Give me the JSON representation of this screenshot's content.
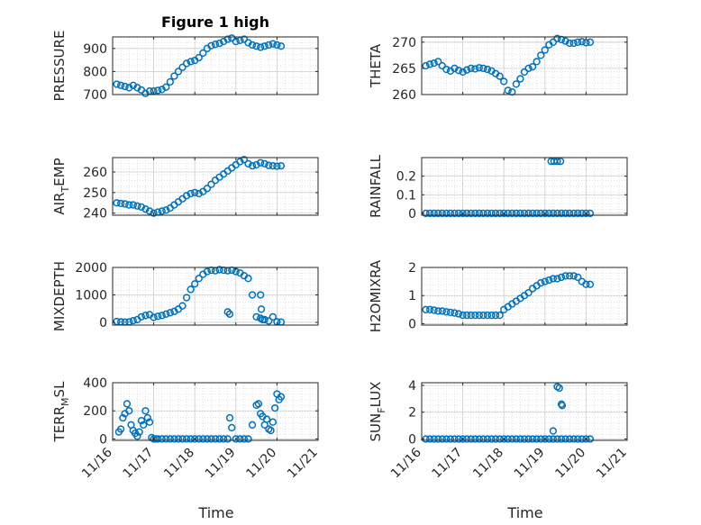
{
  "figure": {
    "title": "Figure 1 high"
  },
  "chart_data": [
    {
      "type": "scatter",
      "panel": "left-1",
      "ylabel": "PRESSURE",
      "ylabel_main": "PRESSURE",
      "ylabel_sub": "",
      "ylabel_tail": "",
      "xlim": [
        0,
        5
      ],
      "ylim": [
        700,
        950
      ],
      "yticks": [
        700,
        800,
        900
      ],
      "yticklabels": [
        "700",
        "800",
        "900"
      ],
      "grid": true,
      "minor_grid": true,
      "x": [
        0.1,
        0.2,
        0.3,
        0.4,
        0.5,
        0.6,
        0.7,
        0.8,
        0.9,
        1.0,
        1.1,
        1.2,
        1.3,
        1.4,
        1.5,
        1.6,
        1.7,
        1.8,
        1.9,
        2.0,
        2.1,
        2.2,
        2.3,
        2.4,
        2.5,
        2.6,
        2.7,
        2.8,
        2.9,
        3.0,
        3.1,
        3.2,
        3.3,
        3.4,
        3.5,
        3.6,
        3.7,
        3.8,
        3.9,
        4.0,
        4.1
      ],
      "y": [
        745,
        740,
        735,
        730,
        740,
        730,
        720,
        705,
        715,
        715,
        718,
        722,
        732,
        755,
        780,
        800,
        818,
        835,
        843,
        848,
        860,
        880,
        900,
        912,
        918,
        922,
        930,
        940,
        945,
        930,
        935,
        940,
        925,
        915,
        910,
        905,
        910,
        915,
        920,
        915,
        910
      ]
    },
    {
      "type": "scatter",
      "panel": "right-1",
      "ylabel": "THETA",
      "ylabel_main": "THETA",
      "ylabel_sub": "",
      "ylabel_tail": "",
      "xlim": [
        0,
        5
      ],
      "ylim": [
        260,
        271
      ],
      "yticks": [
        260,
        265,
        270
      ],
      "yticklabels": [
        "260",
        "265",
        "270"
      ],
      "grid": true,
      "minor_grid": true,
      "x": [
        0.1,
        0.2,
        0.3,
        0.4,
        0.5,
        0.6,
        0.7,
        0.8,
        0.9,
        1.0,
        1.1,
        1.2,
        1.3,
        1.4,
        1.5,
        1.6,
        1.7,
        1.8,
        1.9,
        2.0,
        2.1,
        2.2,
        2.3,
        2.4,
        2.5,
        2.6,
        2.7,
        2.8,
        2.9,
        3.0,
        3.1,
        3.2,
        3.3,
        3.4,
        3.5,
        3.6,
        3.7,
        3.8,
        3.9,
        4.0,
        4.1
      ],
      "y": [
        265.5,
        265.8,
        266,
        266.3,
        265.5,
        264.8,
        264.5,
        265,
        264.6,
        264.3,
        264.7,
        265,
        264.9,
        265.1,
        265,
        264.8,
        264.5,
        264,
        263.5,
        262.5,
        260.8,
        260.5,
        262,
        263,
        264.3,
        265,
        265.3,
        266.3,
        267.5,
        268.5,
        269.5,
        270,
        270.7,
        270.5,
        270.2,
        269.8,
        269.8,
        270,
        270.1,
        269.9,
        270
      ]
    },
    {
      "type": "scatter",
      "panel": "left-2",
      "ylabel": "AIR_TEMP",
      "ylabel_main": "AIR",
      "ylabel_sub": "T",
      "ylabel_tail": "EMP",
      "xlim": [
        0,
        5
      ],
      "ylim": [
        239,
        267
      ],
      "yticks": [
        240,
        250,
        260
      ],
      "yticklabels": [
        "240",
        "250",
        "260"
      ],
      "grid": true,
      "minor_grid": true,
      "x": [
        0.1,
        0.2,
        0.3,
        0.4,
        0.5,
        0.6,
        0.7,
        0.8,
        0.9,
        1.0,
        1.1,
        1.2,
        1.3,
        1.4,
        1.5,
        1.6,
        1.7,
        1.8,
        1.9,
        2.0,
        2.1,
        2.2,
        2.3,
        2.4,
        2.5,
        2.6,
        2.7,
        2.8,
        2.9,
        3.0,
        3.1,
        3.2,
        3.3,
        3.4,
        3.5,
        3.6,
        3.7,
        3.8,
        3.9,
        4.0,
        4.1
      ],
      "y": [
        245,
        244.7,
        244.5,
        244,
        244,
        243.5,
        243,
        242,
        241,
        240,
        240.5,
        241,
        241.5,
        242.5,
        244,
        245.5,
        247,
        248.5,
        249.5,
        250,
        249.5,
        250.5,
        252,
        254,
        256,
        257.5,
        259,
        260.5,
        262,
        263.5,
        265,
        266,
        264,
        263,
        263.5,
        264.5,
        264,
        263.2,
        263,
        262.8,
        263
      ]
    },
    {
      "type": "scatter",
      "panel": "right-2",
      "ylabel": "RAINFALL",
      "ylabel_main": "RAINFALL",
      "ylabel_sub": "",
      "ylabel_tail": "",
      "xlim": [
        0,
        5
      ],
      "ylim": [
        -0.01,
        0.3
      ],
      "yticks": [
        0,
        0.1,
        0.2
      ],
      "yticklabels": [
        "0",
        "0.1",
        "0.2"
      ],
      "grid": true,
      "minor_grid": true,
      "x": [
        0.1,
        0.2,
        0.3,
        0.4,
        0.5,
        0.6,
        0.7,
        0.8,
        0.9,
        1.0,
        1.1,
        1.2,
        1.3,
        1.4,
        1.5,
        1.6,
        1.7,
        1.8,
        1.9,
        2.0,
        2.1,
        2.2,
        2.3,
        2.4,
        2.5,
        2.6,
        2.7,
        2.8,
        2.9,
        3.0,
        3.1,
        3.2,
        3.3,
        3.4,
        3.5,
        3.6,
        3.7,
        3.8,
        3.9,
        4.0,
        4.1,
        3.15,
        3.22,
        3.3,
        3.38
      ],
      "y": [
        0,
        0,
        0,
        0,
        0,
        0,
        0,
        0,
        0,
        0,
        0,
        0,
        0,
        0,
        0,
        0,
        0,
        0,
        0,
        0,
        0,
        0,
        0,
        0,
        0,
        0,
        0,
        0,
        0,
        0,
        0,
        0,
        0,
        0,
        0,
        0,
        0,
        0,
        0,
        0,
        0,
        0.28,
        0.28,
        0.28,
        0.28
      ]
    },
    {
      "type": "scatter",
      "panel": "left-3",
      "ylabel": "MIXDEPTH",
      "ylabel_main": "MIXDEPTH",
      "ylabel_sub": "",
      "ylabel_tail": "",
      "xlim": [
        0,
        5
      ],
      "ylim": [
        -100,
        2000
      ],
      "yticks": [
        0,
        1000,
        2000
      ],
      "yticklabels": [
        "0",
        "1000",
        "2000"
      ],
      "grid": true,
      "minor_grid": true,
      "x": [
        0.1,
        0.2,
        0.3,
        0.4,
        0.5,
        0.6,
        0.7,
        0.8,
        0.9,
        1.0,
        1.1,
        1.2,
        1.3,
        1.4,
        1.5,
        1.6,
        1.7,
        1.8,
        1.9,
        2.0,
        2.1,
        2.2,
        2.3,
        2.4,
        2.5,
        2.6,
        2.7,
        2.8,
        2.9,
        3.0,
        3.1,
        3.2,
        3.3,
        3.4,
        3.5,
        3.6,
        3.7,
        3.8,
        3.9,
        4.0,
        4.1,
        2.8,
        2.85,
        3.6,
        3.62,
        3.65
      ],
      "y": [
        30,
        20,
        10,
        20,
        60,
        100,
        200,
        250,
        280,
        180,
        220,
        250,
        300,
        350,
        400,
        480,
        600,
        900,
        1200,
        1400,
        1600,
        1750,
        1850,
        1900,
        1880,
        1920,
        1900,
        1880,
        1900,
        1850,
        1800,
        1700,
        1600,
        1000,
        200,
        150,
        100,
        50,
        200,
        20,
        10,
        380,
        300,
        1000,
        480,
        100
      ]
    },
    {
      "type": "scatter",
      "panel": "right-3",
      "ylabel": "H2OMIXRA",
      "ylabel_main": "H2OMIXRA",
      "ylabel_sub": "",
      "ylabel_tail": "",
      "xlim": [
        0,
        5
      ],
      "ylim": [
        -0.05,
        2
      ],
      "yticks": [
        0,
        1,
        2
      ],
      "yticklabels": [
        "0",
        "1",
        "2"
      ],
      "grid": true,
      "minor_grid": true,
      "x": [
        0.1,
        0.2,
        0.3,
        0.4,
        0.5,
        0.6,
        0.7,
        0.8,
        0.9,
        1.0,
        1.1,
        1.2,
        1.3,
        1.4,
        1.5,
        1.6,
        1.7,
        1.8,
        1.9,
        2.0,
        2.1,
        2.2,
        2.3,
        2.4,
        2.5,
        2.6,
        2.7,
        2.8,
        2.9,
        3.0,
        3.1,
        3.2,
        3.3,
        3.4,
        3.5,
        3.6,
        3.7,
        3.8,
        3.9,
        4.0,
        4.1
      ],
      "y": [
        0.5,
        0.5,
        0.48,
        0.45,
        0.45,
        0.42,
        0.4,
        0.38,
        0.35,
        0.3,
        0.3,
        0.3,
        0.3,
        0.3,
        0.3,
        0.3,
        0.3,
        0.3,
        0.3,
        0.5,
        0.6,
        0.7,
        0.8,
        0.9,
        1.0,
        1.1,
        1.25,
        1.35,
        1.45,
        1.5,
        1.55,
        1.6,
        1.6,
        1.65,
        1.7,
        1.7,
        1.7,
        1.65,
        1.5,
        1.4,
        1.4
      ]
    },
    {
      "type": "scatter",
      "panel": "left-4",
      "ylabel": "TERR_MSL",
      "ylabel_main": "TERR",
      "ylabel_sub": "M",
      "ylabel_tail": "SL",
      "xlim": [
        0,
        5
      ],
      "ylim": [
        -10,
        400
      ],
      "yticks": [
        0,
        200,
        400
      ],
      "yticklabels": [
        "0",
        "200",
        "400"
      ],
      "grid": true,
      "minor_grid": true,
      "x": [
        0.15,
        0.2,
        0.25,
        0.3,
        0.35,
        0.4,
        0.45,
        0.5,
        0.55,
        0.6,
        0.65,
        0.7,
        0.75,
        0.8,
        0.85,
        0.9,
        0.95,
        1.0,
        1.05,
        1.1,
        1.2,
        1.3,
        1.4,
        1.5,
        1.6,
        1.7,
        1.8,
        1.9,
        2.0,
        2.1,
        2.2,
        2.3,
        2.4,
        2.5,
        2.6,
        2.7,
        2.8,
        2.85,
        2.9,
        3.0,
        3.1,
        3.2,
        3.3,
        3.4,
        3.5,
        3.55,
        3.6,
        3.65,
        3.7,
        3.75,
        3.8,
        3.85,
        3.9,
        3.95,
        4.0,
        4.05,
        4.1
      ],
      "y": [
        50,
        70,
        150,
        180,
        250,
        200,
        100,
        60,
        40,
        20,
        50,
        130,
        100,
        200,
        150,
        120,
        10,
        0,
        0,
        0,
        0,
        0,
        0,
        0,
        0,
        0,
        0,
        0,
        0,
        0,
        0,
        0,
        0,
        0,
        0,
        0,
        0,
        150,
        80,
        0,
        0,
        0,
        0,
        100,
        240,
        250,
        180,
        160,
        100,
        140,
        70,
        60,
        120,
        220,
        320,
        280,
        300
      ]
    },
    {
      "type": "scatter",
      "panel": "right-4",
      "ylabel": "SUN_FLUX",
      "ylabel_main": "SUN",
      "ylabel_sub": "F",
      "ylabel_tail": "LUX",
      "xlim": [
        0,
        5
      ],
      "ylim": [
        -0.1,
        4.2
      ],
      "yticks": [
        0,
        2,
        4
      ],
      "yticklabels": [
        "0",
        "2",
        "4"
      ],
      "grid": true,
      "minor_grid": true,
      "x": [
        0.1,
        0.2,
        0.3,
        0.4,
        0.5,
        0.6,
        0.7,
        0.8,
        0.9,
        1.0,
        1.1,
        1.2,
        1.3,
        1.4,
        1.5,
        1.6,
        1.7,
        1.8,
        1.9,
        2.0,
        2.1,
        2.2,
        2.3,
        2.4,
        2.5,
        2.6,
        2.7,
        2.8,
        2.9,
        3.0,
        3.1,
        3.2,
        3.3,
        3.4,
        3.5,
        3.6,
        3.7,
        3.8,
        3.9,
        4.0,
        4.1,
        3.2,
        3.3,
        3.35,
        3.4,
        3.42
      ],
      "y": [
        0,
        0,
        0,
        0,
        0,
        0,
        0,
        0,
        0,
        0,
        0,
        0,
        0,
        0,
        0,
        0,
        0,
        0,
        0,
        0,
        0,
        0,
        0,
        0,
        0,
        0,
        0,
        0,
        0,
        0,
        0,
        0,
        0,
        0,
        0,
        0,
        0,
        0,
        0,
        0,
        0,
        0.6,
        3.9,
        3.8,
        2.6,
        2.5
      ]
    }
  ],
  "x_axis": {
    "tick_labels": [
      "11/16",
      "11/17",
      "11/18",
      "11/19",
      "11/20",
      "11/21"
    ],
    "label": "Time"
  },
  "colors": {
    "marker": "#0072BD",
    "axis": "#262626",
    "grid": "#d9d9d9"
  }
}
